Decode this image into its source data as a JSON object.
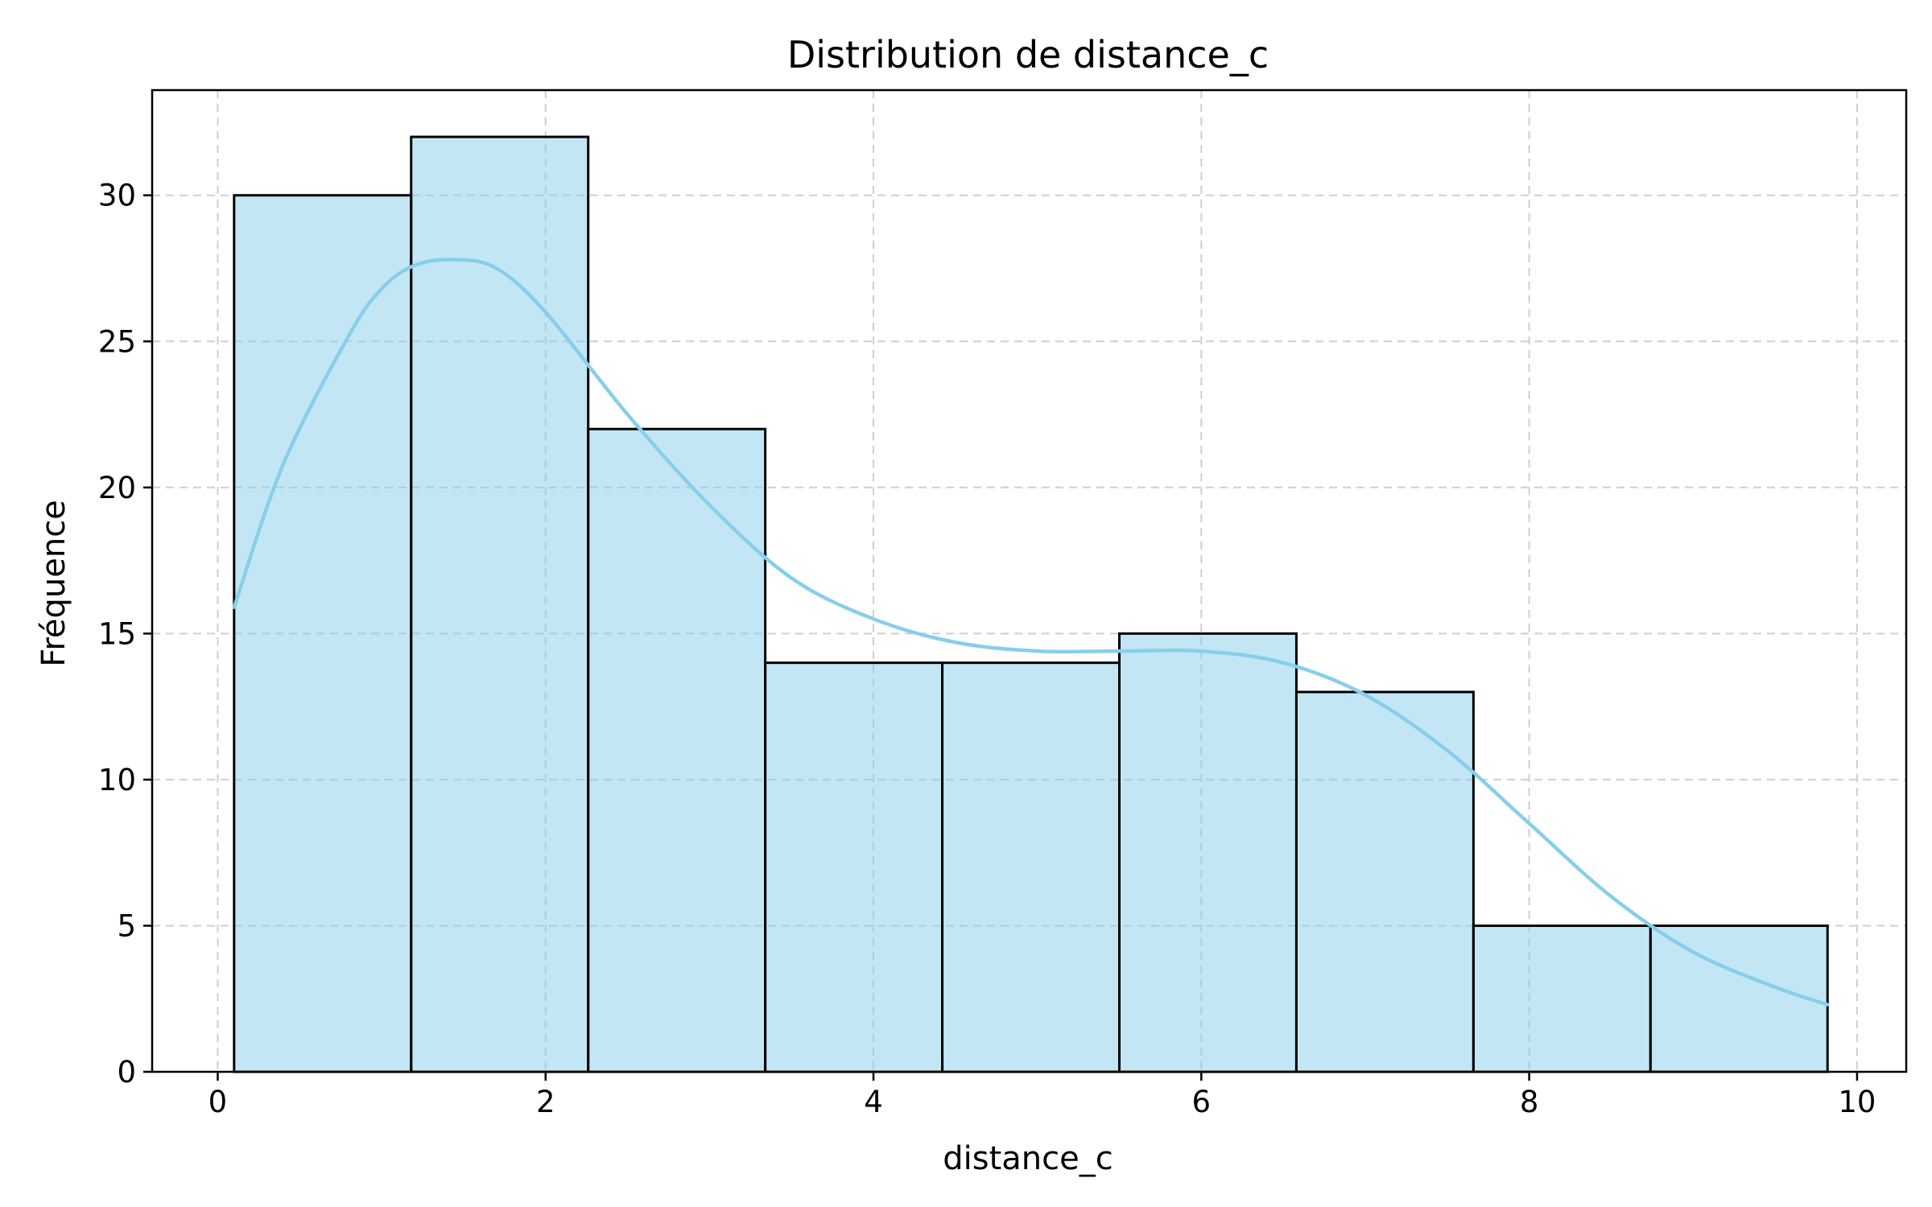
{
  "chart_data": {
    "type": "bar",
    "subtype": "histogram",
    "title": "Distribution de distance_c",
    "xlabel": "distance_c",
    "ylabel": "Fréquence",
    "bin_edges": [
      0.1,
      1.18,
      2.26,
      3.34,
      4.42,
      5.5,
      6.58,
      7.66,
      8.74,
      9.82
    ],
    "values": [
      30,
      32,
      22,
      14,
      14,
      15,
      13,
      5,
      5
    ],
    "xlim": [
      -0.4,
      10.3
    ],
    "ylim": [
      0,
      33.6
    ],
    "xticks": [
      0,
      2,
      4,
      6,
      8,
      10
    ],
    "yticks": [
      0,
      5,
      10,
      15,
      20,
      25,
      30
    ],
    "grid": true,
    "bar_color": "#87CEEB",
    "bar_alpha": 0.5,
    "edge_color": "#000000",
    "kde": {
      "color": "#87CEEB",
      "x": [
        0.1,
        0.4,
        0.8,
        1.0,
        1.2,
        1.45,
        1.7,
        2.0,
        2.5,
        3.0,
        3.5,
        4.0,
        4.5,
        5.0,
        5.5,
        6.0,
        6.5,
        7.0,
        7.5,
        8.0,
        8.5,
        9.0,
        9.5,
        9.82
      ],
      "y": [
        15.9,
        20.8,
        25.2,
        26.8,
        27.6,
        27.8,
        27.5,
        26.0,
        22.5,
        19.4,
        16.9,
        15.5,
        14.7,
        14.4,
        14.4,
        14.4,
        14.0,
        12.9,
        11.0,
        8.5,
        6.0,
        4.1,
        2.9,
        2.3
      ]
    }
  }
}
